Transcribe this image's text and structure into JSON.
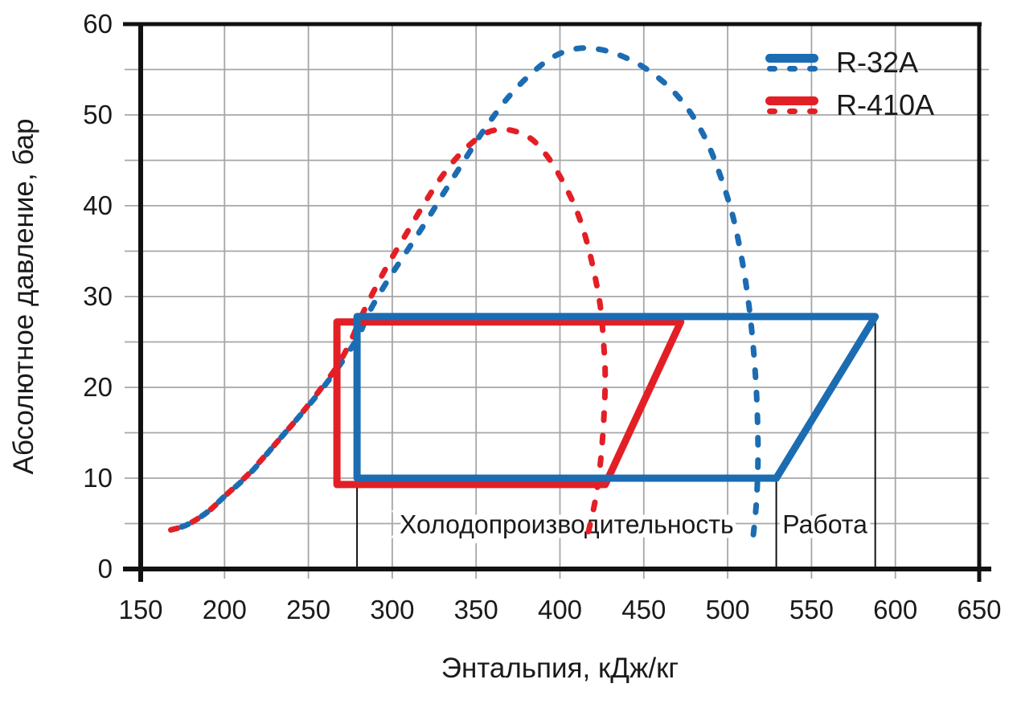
{
  "figure_title": "Pressure-enthalpy diagram comparing R-32A and R-410A refrigeration cycles",
  "colors": {
    "blue_series": "#1c6cb2",
    "red_series": "#e31f26",
    "grid": "#a6a6a6",
    "axis": "#111111",
    "text": "#1a1a1a",
    "background": "#ffffff"
  },
  "chart_data": {
    "type": "line",
    "title": "",
    "xlabel": "Энтальпия, кДж/кг",
    "ylabel": "Абсолютное давление, бар",
    "xlim": [
      150,
      650
    ],
    "ylim": [
      0,
      60
    ],
    "x_ticks": [
      150,
      200,
      250,
      300,
      350,
      400,
      450,
      500,
      550,
      600,
      650
    ],
    "y_ticks": [
      0,
      10,
      20,
      30,
      40,
      50,
      60
    ],
    "x_grid_step": 50,
    "y_grid_step": 5,
    "grid": true,
    "legend_position": "top-right",
    "series": [
      {
        "name": "R-410A",
        "color": "#e31f26",
        "dome_style": "dashed",
        "cycle_style": "solid",
        "saturation_dome": [
          [
            168,
            4.3
          ],
          [
            178,
            4.9
          ],
          [
            190,
            6.3
          ],
          [
            200,
            8.0
          ],
          [
            214,
            10.4
          ],
          [
            229,
            13.5
          ],
          [
            244,
            16.7
          ],
          [
            256,
            19.5
          ],
          [
            267,
            22.3
          ],
          [
            275,
            25.0
          ],
          [
            281,
            27.6
          ],
          [
            289,
            30.6
          ],
          [
            298,
            33.7
          ],
          [
            308,
            36.8
          ],
          [
            318,
            39.9
          ],
          [
            328,
            42.8
          ],
          [
            338,
            45.2
          ],
          [
            348,
            47.0
          ],
          [
            357,
            48.1
          ],
          [
            366,
            48.4
          ],
          [
            375,
            48.1
          ],
          [
            384,
            47.2
          ],
          [
            393,
            45.3
          ],
          [
            401,
            42.9
          ],
          [
            409,
            39.9
          ],
          [
            415,
            36.7
          ],
          [
            420,
            33.0
          ],
          [
            424,
            29.0
          ],
          [
            426,
            25.0
          ],
          [
            427,
            21.0
          ],
          [
            426,
            16.0
          ],
          [
            424,
            11.5
          ],
          [
            421,
            7.5
          ],
          [
            416,
            3.3
          ]
        ],
        "cycle": [
          [
            267,
            9.3
          ],
          [
            267,
            27.2
          ],
          [
            472,
            27.2
          ],
          [
            427,
            9.3
          ]
        ]
      },
      {
        "name": "R-32A",
        "color": "#1c6cb2",
        "dome_style": "dashed",
        "cycle_style": "solid",
        "saturation_dome": [
          [
            168,
            4.3
          ],
          [
            178,
            4.9
          ],
          [
            190,
            6.3
          ],
          [
            200,
            8.0
          ],
          [
            215,
            10.5
          ],
          [
            230,
            13.7
          ],
          [
            245,
            16.9
          ],
          [
            258,
            19.8
          ],
          [
            270,
            22.8
          ],
          [
            280,
            25.7
          ],
          [
            286,
            28.2
          ],
          [
            296,
            31.4
          ],
          [
            308,
            34.8
          ],
          [
            320,
            38.2
          ],
          [
            332,
            41.8
          ],
          [
            344,
            45.3
          ],
          [
            356,
            48.7
          ],
          [
            369,
            51.9
          ],
          [
            382,
            54.4
          ],
          [
            396,
            56.4
          ],
          [
            410,
            57.3
          ],
          [
            424,
            57.2
          ],
          [
            438,
            56.4
          ],
          [
            452,
            55.0
          ],
          [
            466,
            52.9
          ],
          [
            478,
            50.2
          ],
          [
            488,
            46.9
          ],
          [
            496,
            43.1
          ],
          [
            503,
            38.9
          ],
          [
            508,
            34.6
          ],
          [
            512,
            30.0
          ],
          [
            515,
            25.0
          ],
          [
            517,
            20.0
          ],
          [
            518,
            15.0
          ],
          [
            518,
            11.0
          ],
          [
            517,
            7.0
          ],
          [
            515,
            3.2
          ]
        ],
        "cycle": [
          [
            279,
            10
          ],
          [
            279,
            27.8
          ],
          [
            588,
            27.8
          ],
          [
            529,
            10
          ]
        ]
      }
    ],
    "legend": [
      {
        "label": "R-32A",
        "color": "#1c6cb2"
      },
      {
        "label": "R-410A",
        "color": "#e31f26"
      }
    ],
    "annotations": {
      "labels": [
        {
          "text": "Холодопроизводительность",
          "x": 404,
          "y": 5.0
        },
        {
          "text": "Работа",
          "x": 558,
          "y": 5.0
        }
      ],
      "vlines": [
        {
          "x": 279,
          "p_from": 0,
          "p_to": 10
        },
        {
          "x": 529,
          "p_from": 0,
          "p_to": 10
        },
        {
          "x": 588,
          "p_from": 0,
          "p_to": 27.8
        }
      ]
    }
  }
}
